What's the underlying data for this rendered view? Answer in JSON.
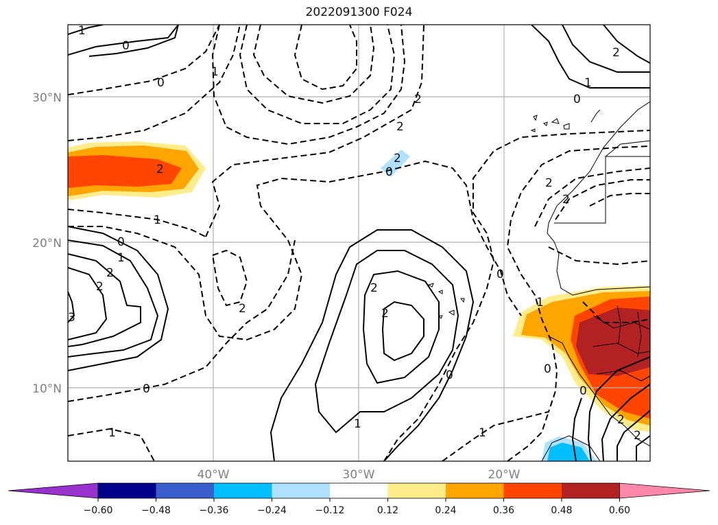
{
  "title": "2022091300 F024",
  "map": {
    "lat_labels": [
      "30°N",
      "20°N",
      "10°N"
    ],
    "lon_labels": [
      "40°W",
      "30°W",
      "20°W"
    ],
    "contour_labels": [
      "1",
      "0",
      "0",
      "1",
      "2",
      "2",
      "0",
      "2",
      "1",
      "0",
      "1",
      "2",
      "2",
      "2",
      "3",
      "0",
      "1",
      "2",
      "2",
      "2",
      "2",
      "0",
      "1",
      "1",
      "0",
      "2",
      "2",
      "0",
      "0",
      "2",
      "2",
      "1",
      "1",
      "0"
    ]
  },
  "colorbar": {
    "tick_labels": [
      "−0.60",
      "−0.48",
      "−0.36",
      "−0.24",
      "−0.12",
      "0.12",
      "0.24",
      "0.36",
      "0.48",
      "0.60"
    ],
    "colors": [
      "#9932cc",
      "#00008b",
      "#3a5fcd",
      "#00bfff",
      "#b0e2ff",
      "#ffffff",
      "#ffec8b",
      "#ffa500",
      "#ff4500",
      "#b22222",
      "#ff88aa"
    ]
  }
}
